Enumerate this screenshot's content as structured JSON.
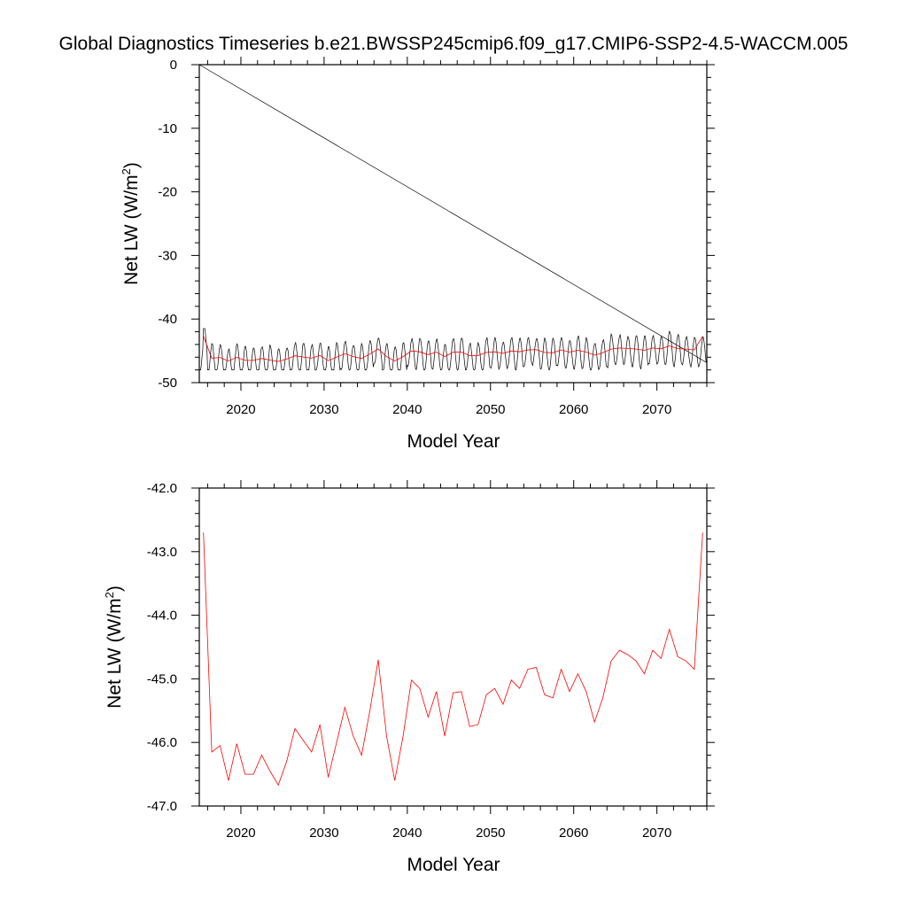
{
  "figure": {
    "title": "Global Diagnostics Timeseries b.e21.BWSSP245cmip6.f09_g17.CMIP6-SSP2-4.5-WACCM.005"
  },
  "colors": {
    "monthly": "#000000",
    "annual": "#ff0000",
    "axis": "#000000"
  },
  "chart_data": [
    {
      "type": "line",
      "panel": "top",
      "title": "",
      "xlabel": "Model Year",
      "ylabel": "Net LW (W/m",
      "ylabel_sup": "2",
      "ylabel_end": ")",
      "xlim": [
        2015,
        2076
      ],
      "ylim": [
        -50,
        0
      ],
      "xticks": [
        2020,
        2030,
        2040,
        2050,
        2060,
        2070
      ],
      "yticks": [
        0,
        -10,
        -20,
        -30,
        -40,
        -50
      ],
      "ytick_labels": [
        "0",
        "-10",
        "-20",
        "-30",
        "-40",
        "-50"
      ],
      "series": [
        {
          "name": "monthly",
          "color": "#000000",
          "description": "Monthly global-mean Net LW, seasonal cycle between about -48 and -41.5 W/m2 (last point wraps back to the first)",
          "start_year": 2015.0,
          "end_year": 2075.95,
          "seasonal_min": -48.0,
          "seasonal_max": -41.5
        },
        {
          "name": "annual",
          "color": "#ff0000",
          "x": [
            2015.5,
            2016.5,
            2017.5,
            2018.5,
            2019.5,
            2020.5,
            2021.5,
            2022.5,
            2023.5,
            2024.5,
            2025.5,
            2026.5,
            2027.5,
            2028.5,
            2029.5,
            2030.5,
            2031.5,
            2032.5,
            2033.5,
            2034.5,
            2035.5,
            2036.5,
            2037.5,
            2038.5,
            2039.5,
            2040.5,
            2041.5,
            2042.5,
            2043.5,
            2044.5,
            2045.5,
            2046.5,
            2047.5,
            2048.5,
            2049.5,
            2050.5,
            2051.5,
            2052.5,
            2053.5,
            2054.5,
            2055.5,
            2056.5,
            2057.5,
            2058.5,
            2059.5,
            2060.5,
            2061.5,
            2062.5,
            2063.5,
            2064.5,
            2065.5,
            2066.5,
            2067.5,
            2068.5,
            2069.5,
            2070.5,
            2071.5,
            2072.5,
            2073.5,
            2074.5,
            2075.5
          ],
          "y": [
            -42.7,
            -46.15,
            -46.05,
            -46.6,
            -46.02,
            -46.5,
            -46.5,
            -46.2,
            -46.45,
            -46.67,
            -46.3,
            -45.78,
            -45.97,
            -46.15,
            -45.72,
            -46.55,
            -46.0,
            -45.45,
            -45.9,
            -46.2,
            -45.5,
            -44.7,
            -45.9,
            -46.6,
            -45.9,
            -45.02,
            -45.15,
            -45.6,
            -45.2,
            -45.9,
            -45.22,
            -45.2,
            -45.75,
            -45.72,
            -45.25,
            -45.15,
            -45.4,
            -45.02,
            -45.15,
            -44.85,
            -44.82,
            -45.25,
            -45.3,
            -44.85,
            -45.2,
            -44.92,
            -45.2,
            -45.68,
            -45.3,
            -44.72,
            -44.55,
            -44.62,
            -44.72,
            -44.92,
            -44.55,
            -44.68,
            -44.22,
            -44.65,
            -44.72,
            -44.85,
            -42.7
          ]
        }
      ]
    },
    {
      "type": "line",
      "panel": "bottom",
      "title": "",
      "xlabel": "Model Year",
      "ylabel": "Net LW (W/m",
      "ylabel_sup": "2",
      "ylabel_end": ")",
      "xlim": [
        2015,
        2076
      ],
      "ylim": [
        -47,
        -42
      ],
      "xticks": [
        2020,
        2030,
        2040,
        2050,
        2060,
        2070
      ],
      "yticks": [
        -42,
        -43,
        -44,
        -45,
        -46,
        -47
      ],
      "ytick_labels": [
        "-42.0",
        "-43.0",
        "-44.0",
        "-45.0",
        "-46.0",
        "-47.0"
      ],
      "series": [
        {
          "name": "annual",
          "color": "#ff0000",
          "same_as": "top.annual"
        }
      ]
    }
  ]
}
